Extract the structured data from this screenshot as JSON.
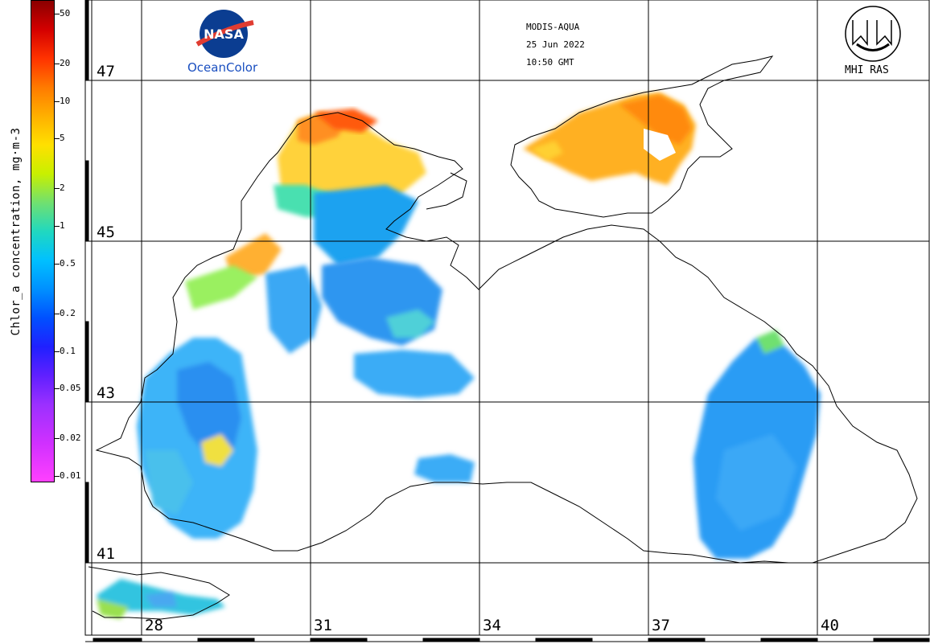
{
  "map": {
    "satellite": "MODIS-AQUA",
    "date": "25 Jun 2022",
    "time": "10:50 GMT",
    "agency_logo_text": "NASA",
    "agency_caption": "OceanColor",
    "institute_logo": "MHI RAS",
    "colorbar": {
      "label": "Chlor_a concentration, mg·m-3",
      "ticks": [
        "50",
        "20",
        "10",
        "5",
        "2",
        "1",
        "0.5",
        "0.2",
        "0.1",
        "0.05",
        "0.02",
        "0.01"
      ],
      "gradient_colors": [
        "#8b0000",
        "#ff3300",
        "#ffb000",
        "#ffe000",
        "#70e070",
        "#20d8c0",
        "#00c0ff",
        "#0050ff",
        "#6020ff",
        "#d030ff",
        "#ff40ff"
      ]
    },
    "latitude_labels": [
      "47",
      "45",
      "43",
      "41"
    ],
    "longitude_labels": [
      "28",
      "31",
      "34",
      "37",
      "40"
    ],
    "land_color": "#ffffff",
    "coast_color": "#000000",
    "grid_color": "#000000"
  }
}
